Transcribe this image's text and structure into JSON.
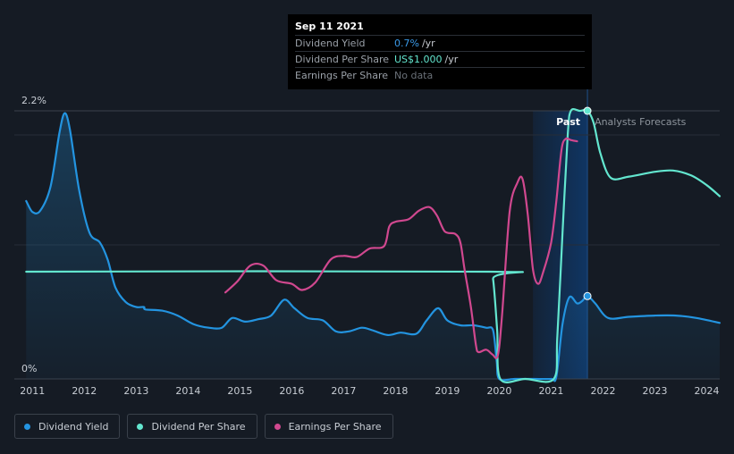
{
  "tooltip": {
    "date": "Sep 11 2021",
    "rows": [
      {
        "label": "Dividend Yield",
        "value": "0.7%",
        "unit": "/yr"
      },
      {
        "label": "Dividend Per Share",
        "value": "US$1.000",
        "unit": "/yr"
      },
      {
        "label": "Earnings Per Share",
        "value": "No data",
        "unit": ""
      }
    ]
  },
  "regions": {
    "past": "Past",
    "forecast": "Analysts Forecasts"
  },
  "legend": [
    {
      "label": "Dividend Yield",
      "color": "#2394e0"
    },
    {
      "label": "Dividend Per Share",
      "color": "#63e6cf"
    },
    {
      "label": "Earnings Per Share",
      "color": "#d0488f"
    }
  ],
  "colors": {
    "yield": "#2394e0",
    "dps": "#63e6cf",
    "eps": "#d0488f",
    "background": "#151b24"
  },
  "chart_data": {
    "type": "line",
    "y_tick_labels": [
      "2.2%",
      "0%"
    ],
    "x_tick_labels": [
      "2011",
      "2012",
      "2013",
      "2014",
      "2015",
      "2016",
      "2017",
      "2018",
      "2019",
      "2020",
      "2021",
      "2022",
      "2023",
      "2024"
    ],
    "ylim": [
      0,
      2.2
    ],
    "xlim": [
      2010.65,
      2024.25
    ],
    "past_region": [
      2020.65,
      2021.7
    ],
    "tooltip_date": 2021.7,
    "series": [
      {
        "name": "Dividend Yield",
        "area": true,
        "points": [
          [
            2010.88,
            1.46
          ],
          [
            2011.0,
            1.37
          ],
          [
            2011.15,
            1.38
          ],
          [
            2011.35,
            1.58
          ],
          [
            2011.52,
            2.02
          ],
          [
            2011.62,
            2.18
          ],
          [
            2011.72,
            2.05
          ],
          [
            2011.9,
            1.55
          ],
          [
            2012.1,
            1.2
          ],
          [
            2012.3,
            1.12
          ],
          [
            2012.45,
            0.98
          ],
          [
            2012.6,
            0.75
          ],
          [
            2012.8,
            0.63
          ],
          [
            2013.0,
            0.59
          ],
          [
            2013.15,
            0.59
          ],
          [
            2013.18,
            0.57
          ],
          [
            2013.5,
            0.56
          ],
          [
            2013.8,
            0.52
          ],
          [
            2014.1,
            0.45
          ],
          [
            2014.4,
            0.42
          ],
          [
            2014.65,
            0.42
          ],
          [
            2014.85,
            0.5
          ],
          [
            2015.1,
            0.47
          ],
          [
            2015.35,
            0.49
          ],
          [
            2015.6,
            0.52
          ],
          [
            2015.85,
            0.65
          ],
          [
            2016.05,
            0.58
          ],
          [
            2016.3,
            0.5
          ],
          [
            2016.6,
            0.48
          ],
          [
            2016.85,
            0.39
          ],
          [
            2017.1,
            0.39
          ],
          [
            2017.35,
            0.42
          ],
          [
            2017.55,
            0.4
          ],
          [
            2017.85,
            0.36
          ],
          [
            2018.1,
            0.38
          ],
          [
            2018.4,
            0.37
          ],
          [
            2018.6,
            0.48
          ],
          [
            2018.82,
            0.58
          ],
          [
            2019.0,
            0.48
          ],
          [
            2019.25,
            0.44
          ],
          [
            2019.5,
            0.44
          ],
          [
            2019.75,
            0.42
          ],
          [
            2019.88,
            0.4
          ],
          [
            2019.95,
            0.15
          ],
          [
            2020.0,
            0.0
          ],
          [
            2020.3,
            0.0
          ],
          [
            2020.65,
            0.0
          ],
          [
            2021.0,
            0.0
          ],
          [
            2021.1,
            0.02
          ],
          [
            2021.22,
            0.45
          ],
          [
            2021.35,
            0.67
          ],
          [
            2021.5,
            0.62
          ],
          [
            2021.6,
            0.64
          ],
          [
            2021.7,
            0.68
          ],
          [
            2021.85,
            0.62
          ],
          [
            2022.1,
            0.5
          ],
          [
            2022.5,
            0.51
          ],
          [
            2023.0,
            0.52
          ],
          [
            2023.4,
            0.52
          ],
          [
            2023.8,
            0.5
          ],
          [
            2024.25,
            0.46
          ]
        ]
      },
      {
        "name": "Dividend Per Share",
        "area": false,
        "points": [
          [
            2010.88,
            0.88
          ],
          [
            2019.8,
            0.88
          ],
          [
            2019.88,
            0.82
          ],
          [
            2019.96,
            0.4
          ],
          [
            2020.02,
            0.0
          ],
          [
            2020.5,
            0.0
          ],
          [
            2021.05,
            0.0
          ],
          [
            2021.12,
            0.35
          ],
          [
            2021.22,
            1.2
          ],
          [
            2021.32,
            2.0
          ],
          [
            2021.38,
            2.2
          ],
          [
            2021.55,
            2.2
          ],
          [
            2021.7,
            2.2
          ],
          [
            2021.82,
            2.1
          ],
          [
            2021.95,
            1.85
          ],
          [
            2022.15,
            1.65
          ],
          [
            2022.5,
            1.66
          ],
          [
            2023.0,
            1.7
          ],
          [
            2023.35,
            1.71
          ],
          [
            2023.7,
            1.67
          ],
          [
            2024.0,
            1.59
          ],
          [
            2024.25,
            1.5
          ]
        ]
      },
      {
        "name": "Earnings Per Share",
        "area": false,
        "points": [
          [
            2014.72,
            0.71
          ],
          [
            2014.95,
            0.8
          ],
          [
            2015.2,
            0.93
          ],
          [
            2015.45,
            0.93
          ],
          [
            2015.7,
            0.81
          ],
          [
            2016.0,
            0.78
          ],
          [
            2016.2,
            0.73
          ],
          [
            2016.45,
            0.79
          ],
          [
            2016.75,
            0.98
          ],
          [
            2017.0,
            1.01
          ],
          [
            2017.25,
            1.0
          ],
          [
            2017.5,
            1.07
          ],
          [
            2017.78,
            1.09
          ],
          [
            2017.88,
            1.25
          ],
          [
            2018.0,
            1.29
          ],
          [
            2018.25,
            1.31
          ],
          [
            2018.45,
            1.38
          ],
          [
            2018.65,
            1.41
          ],
          [
            2018.8,
            1.34
          ],
          [
            2018.95,
            1.21
          ],
          [
            2019.15,
            1.19
          ],
          [
            2019.25,
            1.12
          ],
          [
            2019.33,
            0.9
          ],
          [
            2019.45,
            0.6
          ],
          [
            2019.55,
            0.28
          ],
          [
            2019.6,
            0.22
          ],
          [
            2019.75,
            0.24
          ],
          [
            2019.87,
            0.2
          ],
          [
            2019.97,
            0.19
          ],
          [
            2020.05,
            0.5
          ],
          [
            2020.2,
            1.37
          ],
          [
            2020.35,
            1.61
          ],
          [
            2020.45,
            1.64
          ],
          [
            2020.55,
            1.35
          ],
          [
            2020.65,
            0.9
          ],
          [
            2020.75,
            0.78
          ],
          [
            2020.85,
            0.88
          ],
          [
            2021.0,
            1.12
          ],
          [
            2021.1,
            1.46
          ],
          [
            2021.2,
            1.88
          ],
          [
            2021.28,
            1.97
          ],
          [
            2021.38,
            1.96
          ],
          [
            2021.5,
            1.95
          ]
        ]
      }
    ]
  }
}
